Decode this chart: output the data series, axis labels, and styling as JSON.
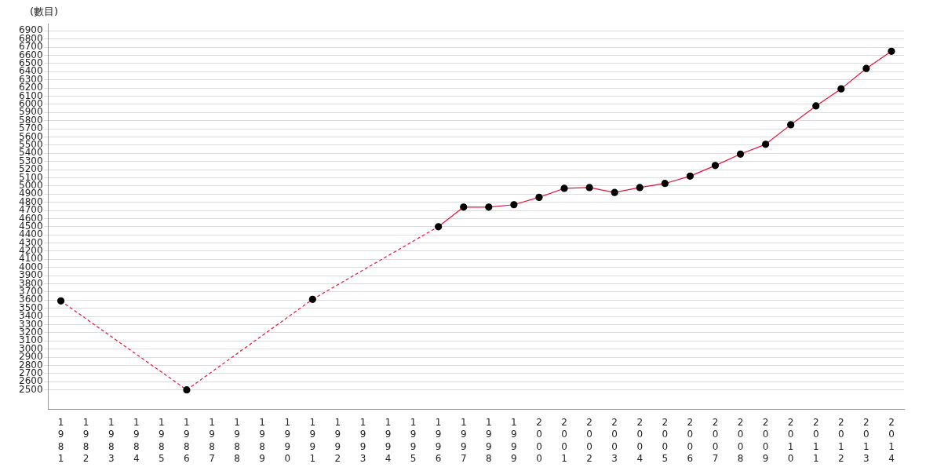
{
  "chart_data": {
    "type": "line",
    "ylabel": "(數目)",
    "categories": [
      "1981",
      "1982",
      "1983",
      "1984",
      "1985",
      "1986",
      "1987",
      "1988",
      "1989",
      "1990",
      "1991",
      "1992",
      "1993",
      "1994",
      "1995",
      "1996",
      "1997",
      "1998",
      "1999",
      "2000",
      "2001",
      "2002",
      "2003",
      "2004",
      "2005",
      "2006",
      "2007",
      "2008",
      "2009",
      "2010",
      "2011",
      "2012",
      "2013",
      "2014"
    ],
    "series": [
      {
        "color": "#e8103a",
        "values": [
          3590,
          null,
          null,
          null,
          null,
          2500,
          null,
          null,
          null,
          null,
          3610,
          null,
          null,
          null,
          null,
          4500,
          4740,
          4740,
          4770,
          4860,
          4970,
          4980,
          4920,
          4980,
          5030,
          5120,
          5250,
          5390,
          5510,
          5750,
          5980,
          6190,
          6440,
          6650
        ]
      }
    ],
    "ylim": [
      2260,
      6990
    ],
    "yticks": [
      2500,
      2600,
      2700,
      2800,
      2900,
      3000,
      3100,
      3200,
      3300,
      3400,
      3500,
      3600,
      3700,
      3800,
      3900,
      4000,
      4100,
      4200,
      4300,
      4400,
      4500,
      4600,
      4700,
      4800,
      4900,
      5000,
      5100,
      5200,
      5300,
      5400,
      5500,
      5600,
      5700,
      5800,
      5900,
      6000,
      6100,
      6200,
      6300,
      6400,
      6500,
      6600,
      6700,
      6800,
      6900
    ],
    "grid": "y",
    "marker": "circle",
    "line_style": "solid",
    "legend": false
  }
}
